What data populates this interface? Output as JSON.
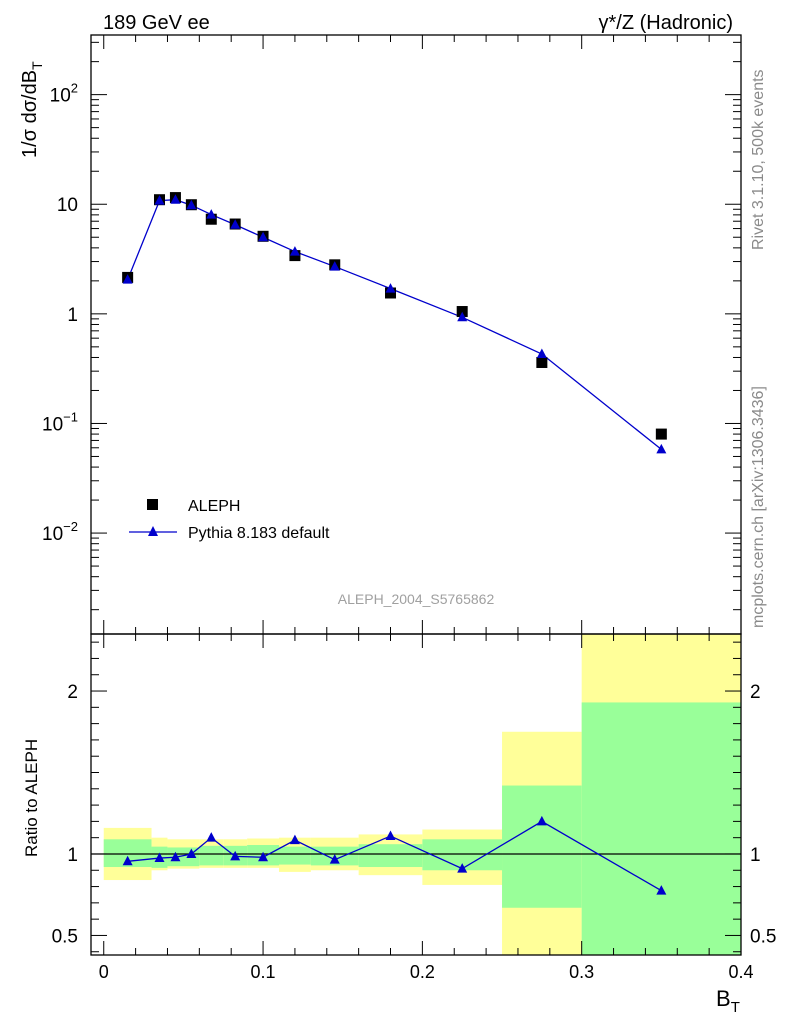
{
  "header": {
    "left_title": "189 GeV ee",
    "right_title_prefix": "γ*/Z",
    "right_title_suffix": " (Hadronic)"
  },
  "side_text": {
    "rivet": "Rivet 3.1.10,  500k events",
    "mcplots": "mcplots.cern.ch [arXiv:1306.3436]"
  },
  "analysis_id": "ALEPH_2004_S5765862",
  "legend": {
    "data_label": "ALEPH",
    "mc_label": "Pythia 8.183 default"
  },
  "colors": {
    "data": "#000000",
    "mc": "#0000cc",
    "band_outer": "#ffff99",
    "band_inner": "#99ff99"
  },
  "chart_data": [
    {
      "type": "scatter",
      "title": "",
      "ylabel_main": "1/σ  dσ/dB",
      "ylabel_sub": "T",
      "yscale": "log",
      "ylim": [
        0.0012,
        350
      ],
      "xlim": [
        -0.008,
        0.4
      ],
      "ytick_labels": [
        {
          "value": 0.01,
          "base": "10",
          "exp": "−2"
        },
        {
          "value": 0.1,
          "base": "10",
          "exp": "−1"
        },
        {
          "value": 1,
          "base": "1",
          "exp": ""
        },
        {
          "value": 10,
          "base": "10",
          "exp": ""
        },
        {
          "value": 100,
          "base": "10",
          "exp": "2"
        }
      ],
      "series": [
        {
          "name": "ALEPH",
          "marker": "square",
          "x": [
            0.015,
            0.035,
            0.045,
            0.055,
            0.0675,
            0.0825,
            0.1,
            0.12,
            0.145,
            0.18,
            0.225,
            0.275,
            0.35
          ],
          "y": [
            2.15,
            11.0,
            11.5,
            9.9,
            7.3,
            6.6,
            5.1,
            3.4,
            2.8,
            1.55,
            1.05,
            0.36,
            0.08
          ]
        },
        {
          "name": "Pythia 8.183 default",
          "marker": "triangle",
          "x": [
            0.015,
            0.035,
            0.045,
            0.055,
            0.0675,
            0.0825,
            0.1,
            0.12,
            0.145,
            0.18,
            0.225,
            0.275,
            0.35
          ],
          "y": [
            2.05,
            10.8,
            11.0,
            9.8,
            8.05,
            6.5,
            5.0,
            3.7,
            2.7,
            1.7,
            0.93,
            0.43,
            0.058
          ]
        }
      ]
    },
    {
      "type": "scatter",
      "title": "",
      "ylabel": "Ratio to ALEPH",
      "xlabel_main": "B",
      "xlabel_sub": "T",
      "ylim": [
        0.38,
        2.35
      ],
      "xlim": [
        -0.008,
        0.4
      ],
      "x_tick_values": [
        0,
        0.1,
        0.2,
        0.3,
        0.4
      ],
      "x_tick_labels": [
        "0",
        "0.1",
        "0.2",
        "0.3",
        "0.4"
      ],
      "y_tick_values": [
        0.5,
        1,
        2
      ],
      "y_tick_labels": [
        "0.5",
        "1",
        "2"
      ],
      "reference_line": 1,
      "bands": [
        {
          "x0": 0.0,
          "x1": 0.03,
          "inner": [
            0.92,
            1.09
          ],
          "outer": [
            0.84,
            1.16
          ]
        },
        {
          "x0": 0.03,
          "x1": 0.04,
          "inner": [
            0.915,
            1.045
          ],
          "outer": [
            0.9,
            1.1
          ]
        },
        {
          "x0": 0.04,
          "x1": 0.06,
          "inner": [
            0.925,
            1.04
          ],
          "outer": [
            0.91,
            1.09
          ]
        },
        {
          "x0": 0.06,
          "x1": 0.075,
          "inner": [
            0.93,
            1.05
          ],
          "outer": [
            0.915,
            1.09
          ]
        },
        {
          "x0": 0.075,
          "x1": 0.09,
          "inner": [
            0.93,
            1.05
          ],
          "outer": [
            0.915,
            1.09
          ]
        },
        {
          "x0": 0.09,
          "x1": 0.11,
          "inner": [
            0.93,
            1.055
          ],
          "outer": [
            0.915,
            1.095
          ]
        },
        {
          "x0": 0.11,
          "x1": 0.13,
          "inner": [
            0.935,
            1.045
          ],
          "outer": [
            0.89,
            1.1
          ]
        },
        {
          "x0": 0.13,
          "x1": 0.16,
          "inner": [
            0.93,
            1.045
          ],
          "outer": [
            0.9,
            1.1
          ]
        },
        {
          "x0": 0.16,
          "x1": 0.2,
          "inner": [
            0.92,
            1.06
          ],
          "outer": [
            0.87,
            1.12
          ]
        },
        {
          "x0": 0.2,
          "x1": 0.25,
          "inner": [
            0.9,
            1.09
          ],
          "outer": [
            0.81,
            1.15
          ]
        },
        {
          "x0": 0.25,
          "x1": 0.3,
          "inner": [
            0.67,
            1.42
          ],
          "outer": [
            0.3,
            1.75
          ]
        },
        {
          "x0": 0.3,
          "x1": 0.4,
          "inner": [
            0.3,
            1.93
          ],
          "outer": [
            0.3,
            2.4
          ]
        }
      ],
      "series": [
        {
          "name": "Pythia 8.183 default / ALEPH",
          "x": [
            0.015,
            0.035,
            0.045,
            0.055,
            0.0675,
            0.0825,
            0.1,
            0.12,
            0.145,
            0.18,
            0.225,
            0.275,
            0.35
          ],
          "y": [
            0.955,
            0.975,
            0.98,
            1.0,
            1.1,
            0.985,
            0.98,
            1.085,
            0.965,
            1.11,
            0.91,
            1.2,
            0.775
          ]
        }
      ]
    }
  ]
}
